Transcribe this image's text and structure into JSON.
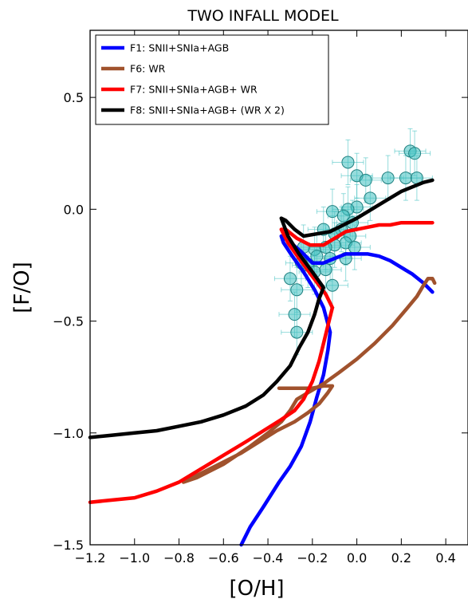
{
  "chart_data": {
    "type": "line",
    "title": "TWO INFALL MODEL",
    "xlabel": "[O/H]",
    "ylabel": "[F/O]",
    "xlim": [
      -1.2,
      0.5
    ],
    "ylim": [
      -1.5,
      0.8
    ],
    "xticks": [
      -1.2,
      -1.0,
      -0.8,
      -0.6,
      -0.4,
      -0.2,
      0.0,
      0.2,
      0.4
    ],
    "xtick_labels": [
      "−1.2",
      "−1.0",
      "−0.8",
      "−0.6",
      "−0.4",
      "−0.2",
      "0.0",
      "0.2",
      "0.4"
    ],
    "yticks": [
      -1.5,
      -1.0,
      -0.5,
      0.0,
      0.5
    ],
    "ytick_labels": [
      "−1.5",
      "−1.0",
      "−0.5",
      "0.0",
      "0.5"
    ],
    "grid": false,
    "legend_position": "top-left",
    "series": [
      {
        "name": "F1: SNII+SNIa+AGB",
        "color": "#0000ff",
        "points": [
          [
            -0.52,
            -1.5
          ],
          [
            -0.48,
            -1.42
          ],
          [
            -0.42,
            -1.33
          ],
          [
            -0.35,
            -1.22
          ],
          [
            -0.3,
            -1.15
          ],
          [
            -0.25,
            -1.06
          ],
          [
            -0.21,
            -0.95
          ],
          [
            -0.18,
            -0.84
          ],
          [
            -0.15,
            -0.74
          ],
          [
            -0.13,
            -0.63
          ],
          [
            -0.12,
            -0.55
          ],
          [
            -0.15,
            -0.44
          ],
          [
            -0.19,
            -0.36
          ],
          [
            -0.24,
            -0.28
          ],
          [
            -0.29,
            -0.21
          ],
          [
            -0.33,
            -0.15
          ],
          [
            -0.34,
            -0.12
          ],
          [
            -0.31,
            -0.14
          ],
          [
            -0.25,
            -0.19
          ],
          [
            -0.2,
            -0.24
          ],
          [
            -0.15,
            -0.24
          ],
          [
            -0.1,
            -0.22
          ],
          [
            -0.05,
            -0.2
          ],
          [
            0.0,
            -0.2
          ],
          [
            0.05,
            -0.2
          ],
          [
            0.1,
            -0.21
          ],
          [
            0.15,
            -0.23
          ],
          [
            0.2,
            -0.26
          ],
          [
            0.25,
            -0.29
          ],
          [
            0.3,
            -0.33
          ],
          [
            0.34,
            -0.37
          ]
        ]
      },
      {
        "name": "F6: WR",
        "color": "#a0522d",
        "points": [
          [
            -0.35,
            -0.8
          ],
          [
            -0.3,
            -0.8
          ],
          [
            -0.25,
            -0.8
          ],
          [
            -0.2,
            -0.8
          ],
          [
            -0.15,
            -0.79
          ],
          [
            -0.11,
            -0.79
          ],
          [
            -0.13,
            -0.82
          ],
          [
            -0.17,
            -0.87
          ],
          [
            -0.22,
            -0.91
          ],
          [
            -0.28,
            -0.95
          ],
          [
            -0.36,
            -0.99
          ],
          [
            -0.44,
            -1.04
          ],
          [
            -0.52,
            -1.09
          ],
          [
            -0.6,
            -1.13
          ],
          [
            -0.7,
            -1.18
          ],
          [
            -0.78,
            -1.22
          ],
          [
            -0.72,
            -1.2
          ],
          [
            -0.6,
            -1.14
          ],
          [
            -0.48,
            -1.06
          ],
          [
            -0.4,
            -1.0
          ],
          [
            -0.34,
            -0.95
          ],
          [
            -0.3,
            -0.9
          ],
          [
            -0.27,
            -0.85
          ],
          [
            -0.22,
            -0.82
          ],
          [
            -0.15,
            -0.78
          ],
          [
            -0.08,
            -0.73
          ],
          [
            0.0,
            -0.67
          ],
          [
            0.08,
            -0.6
          ],
          [
            0.16,
            -0.52
          ],
          [
            0.22,
            -0.45
          ],
          [
            0.27,
            -0.39
          ],
          [
            0.3,
            -0.34
          ],
          [
            0.32,
            -0.31
          ],
          [
            0.34,
            -0.31
          ],
          [
            0.35,
            -0.33
          ]
        ]
      },
      {
        "name": "F7: SNII+SNIa+AGB+ WR",
        "color": "#ff0000",
        "points": [
          [
            -1.2,
            -1.31
          ],
          [
            -1.1,
            -1.3
          ],
          [
            -1.0,
            -1.29
          ],
          [
            -0.9,
            -1.26
          ],
          [
            -0.8,
            -1.22
          ],
          [
            -0.7,
            -1.16
          ],
          [
            -0.6,
            -1.1
          ],
          [
            -0.5,
            -1.04
          ],
          [
            -0.42,
            -0.99
          ],
          [
            -0.34,
            -0.94
          ],
          [
            -0.28,
            -0.9
          ],
          [
            -0.24,
            -0.85
          ],
          [
            -0.2,
            -0.77
          ],
          [
            -0.17,
            -0.68
          ],
          [
            -0.15,
            -0.6
          ],
          [
            -0.13,
            -0.52
          ],
          [
            -0.11,
            -0.44
          ],
          [
            -0.14,
            -0.38
          ],
          [
            -0.2,
            -0.3
          ],
          [
            -0.26,
            -0.22
          ],
          [
            -0.31,
            -0.15
          ],
          [
            -0.34,
            -0.09
          ],
          [
            -0.32,
            -0.09
          ],
          [
            -0.27,
            -0.13
          ],
          [
            -0.21,
            -0.16
          ],
          [
            -0.15,
            -0.16
          ],
          [
            -0.1,
            -0.13
          ],
          [
            -0.05,
            -0.1
          ],
          [
            0.0,
            -0.09
          ],
          [
            0.05,
            -0.08
          ],
          [
            0.1,
            -0.07
          ],
          [
            0.15,
            -0.07
          ],
          [
            0.2,
            -0.06
          ],
          [
            0.25,
            -0.06
          ],
          [
            0.3,
            -0.06
          ],
          [
            0.34,
            -0.06
          ]
        ]
      },
      {
        "name": "F8: SNII+SNIa+AGB+ (WR X 2)",
        "color": "#000000",
        "points": [
          [
            -1.2,
            -1.02
          ],
          [
            -1.1,
            -1.01
          ],
          [
            -1.0,
            -1.0
          ],
          [
            -0.9,
            -0.99
          ],
          [
            -0.8,
            -0.97
          ],
          [
            -0.7,
            -0.95
          ],
          [
            -0.6,
            -0.92
          ],
          [
            -0.5,
            -0.88
          ],
          [
            -0.42,
            -0.83
          ],
          [
            -0.36,
            -0.77
          ],
          [
            -0.3,
            -0.7
          ],
          [
            -0.26,
            -0.62
          ],
          [
            -0.22,
            -0.55
          ],
          [
            -0.19,
            -0.47
          ],
          [
            -0.17,
            -0.4
          ],
          [
            -0.15,
            -0.35
          ],
          [
            -0.2,
            -0.28
          ],
          [
            -0.26,
            -0.2
          ],
          [
            -0.31,
            -0.12
          ],
          [
            -0.34,
            -0.04
          ],
          [
            -0.32,
            -0.05
          ],
          [
            -0.28,
            -0.09
          ],
          [
            -0.24,
            -0.12
          ],
          [
            -0.18,
            -0.11
          ],
          [
            -0.12,
            -0.1
          ],
          [
            -0.06,
            -0.07
          ],
          [
            0.0,
            -0.04
          ],
          [
            0.05,
            -0.01
          ],
          [
            0.1,
            0.02
          ],
          [
            0.15,
            0.05
          ],
          [
            0.2,
            0.08
          ],
          [
            0.25,
            0.1
          ],
          [
            0.3,
            0.12
          ],
          [
            0.34,
            0.13
          ]
        ]
      }
    ],
    "observations": {
      "color": "#40c0c0",
      "points": [
        [
          -0.04,
          0.21
        ],
        [
          0.0,
          0.15
        ],
        [
          0.04,
          0.13
        ],
        [
          0.14,
          0.14
        ],
        [
          0.24,
          0.26
        ],
        [
          0.26,
          0.25
        ],
        [
          0.22,
          0.14
        ],
        [
          0.27,
          0.14
        ],
        [
          0.06,
          0.05
        ],
        [
          0.0,
          0.01
        ],
        [
          -0.04,
          0.0
        ],
        [
          -0.11,
          -0.01
        ],
        [
          -0.06,
          -0.03
        ],
        [
          -0.02,
          -0.06
        ],
        [
          -0.07,
          -0.09
        ],
        [
          -0.15,
          -0.09
        ],
        [
          -0.1,
          -0.11
        ],
        [
          -0.03,
          -0.12
        ],
        [
          -0.05,
          -0.15
        ],
        [
          -0.1,
          -0.16
        ],
        [
          -0.14,
          -0.17
        ],
        [
          -0.19,
          -0.18
        ],
        [
          -0.24,
          -0.17
        ],
        [
          -0.01,
          -0.17
        ],
        [
          -0.12,
          -0.22
        ],
        [
          -0.05,
          -0.22
        ],
        [
          -0.18,
          -0.21
        ],
        [
          -0.22,
          -0.25
        ],
        [
          -0.25,
          -0.24
        ],
        [
          -0.19,
          -0.28
        ],
        [
          -0.3,
          -0.31
        ],
        [
          -0.27,
          -0.36
        ],
        [
          -0.28,
          -0.47
        ],
        [
          -0.27,
          -0.55
        ],
        [
          -0.14,
          -0.27
        ],
        [
          -0.11,
          -0.34
        ]
      ],
      "xerr": 0.07,
      "yerr": 0.1
    }
  }
}
